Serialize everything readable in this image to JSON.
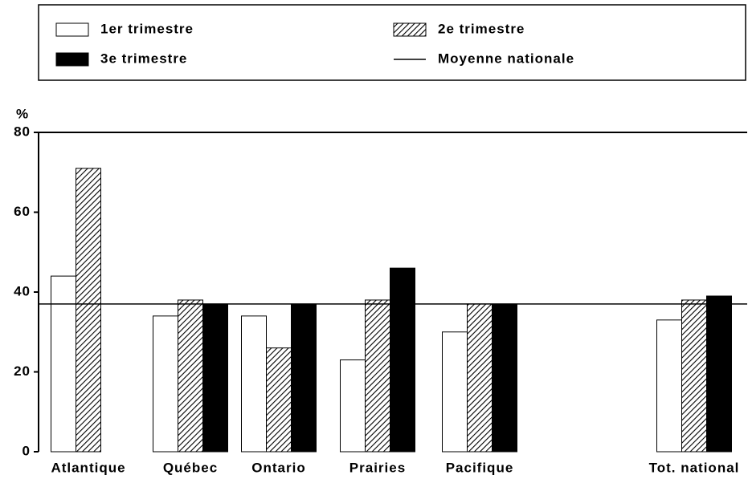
{
  "chart_data": {
    "type": "bar",
    "y_label": "%",
    "categories": [
      "Atlantique",
      "Québec",
      "Ontario",
      "Prairies",
      "Pacifique",
      "Tot. national"
    ],
    "series": [
      {
        "name": "1er trimestre",
        "color": "#ffffff",
        "pattern": "none",
        "values": [
          44,
          34,
          34,
          23,
          30,
          33
        ]
      },
      {
        "name": "2e trimestre",
        "color": "#ffffff",
        "pattern": "hatch",
        "values": [
          71,
          38,
          26,
          38,
          37,
          38
        ]
      },
      {
        "name": "3e trimestre",
        "color": "#000000",
        "pattern": "none",
        "values": [
          null,
          37,
          37,
          46,
          37,
          39
        ]
      }
    ],
    "average": {
      "name": "Moyenne nationale",
      "value": 37,
      "color": "#000000"
    },
    "ylim": [
      0,
      80
    ],
    "yticks": [
      0,
      20,
      40,
      60,
      80
    ],
    "grid": false
  }
}
